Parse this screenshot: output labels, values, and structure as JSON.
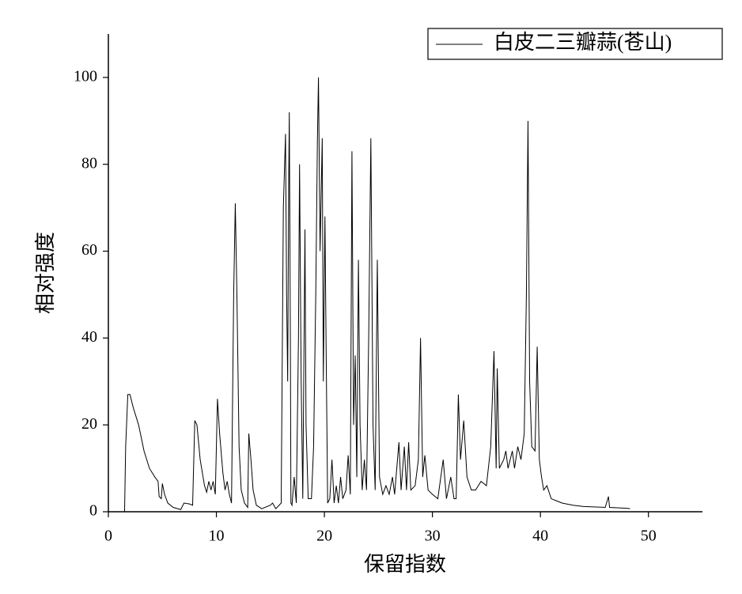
{
  "chart_data": {
    "type": "line",
    "xlabel": "保留指数",
    "ylabel": "相对强度",
    "xlim": [
      0,
      55
    ],
    "ylim": [
      0,
      110
    ],
    "xticks": [
      0,
      10,
      20,
      30,
      40,
      50
    ],
    "yticks": [
      0,
      20,
      40,
      60,
      80,
      100
    ],
    "legend": "upper right",
    "series": [
      {
        "name": "白皮二三瓣蒜(苍山)",
        "color": "#000000",
        "x": [
          1.5,
          1.6,
          1.8,
          2.0,
          2.3,
          2.8,
          3.3,
          3.8,
          4.3,
          4.6,
          4.7,
          4.9,
          5.0,
          5.2,
          5.5,
          6.0,
          6.7,
          7.0,
          7.5,
          7.8,
          8.0,
          8.2,
          8.5,
          8.9,
          9.1,
          9.3,
          9.5,
          9.7,
          9.9,
          10.1,
          10.3,
          10.6,
          10.8,
          11.0,
          11.2,
          11.4,
          11.6,
          11.75,
          11.9,
          12.1,
          12.3,
          12.6,
          12.9,
          13.0,
          13.2,
          13.4,
          13.7,
          14.2,
          15.0,
          15.2,
          15.5,
          16.0,
          16.2,
          16.4,
          16.5,
          16.6,
          16.7,
          16.75,
          16.85,
          16.9,
          17.0,
          17.2,
          17.4,
          17.6,
          17.7,
          17.85,
          18.0,
          18.2,
          18.3,
          18.5,
          18.8,
          19.0,
          19.2,
          19.35,
          19.45,
          19.6,
          19.8,
          19.9,
          20.05,
          20.15,
          20.3,
          20.5,
          20.7,
          20.9,
          21.1,
          21.3,
          21.5,
          21.7,
          22.0,
          22.2,
          22.4,
          22.55,
          22.7,
          22.85,
          23.0,
          23.15,
          23.3,
          23.5,
          23.7,
          23.9,
          24.1,
          24.3,
          24.5,
          24.7,
          24.9,
          25.1,
          25.4,
          25.7,
          26.0,
          26.3,
          26.5,
          26.9,
          27.1,
          27.4,
          27.6,
          27.8,
          28.0,
          28.4,
          28.7,
          28.9,
          29.1,
          29.3,
          29.6,
          30.0,
          30.5,
          31.0,
          31.3,
          31.7,
          32.0,
          32.2,
          32.4,
          32.6,
          32.9,
          33.2,
          33.6,
          34.0,
          34.5,
          35.0,
          35.4,
          35.7,
          35.9,
          36.0,
          36.2,
          36.6,
          36.8,
          37.0,
          37.4,
          37.6,
          37.9,
          38.2,
          38.5,
          38.7,
          38.85,
          39.0,
          39.2,
          39.5,
          39.7,
          39.9,
          40.1,
          40.3,
          40.6,
          41.0,
          41.5,
          42.0,
          43.0,
          44.0,
          46.0,
          46.3,
          46.4,
          48.0,
          48.3
        ],
        "values": [
          0,
          15,
          27,
          27,
          24,
          20,
          14,
          10,
          8,
          7,
          3.5,
          3,
          6.5,
          4,
          2,
          1,
          0.5,
          2,
          1.8,
          1.5,
          21,
          20,
          12,
          6,
          4.5,
          7,
          5,
          7,
          4,
          26,
          18,
          9,
          5,
          7,
          4,
          2,
          50,
          71,
          50,
          15,
          5,
          2,
          1,
          18,
          12,
          5,
          1.5,
          0.7,
          1.5,
          2,
          0.7,
          2,
          70,
          87,
          50,
          30,
          77,
          92,
          40,
          2,
          1.5,
          8,
          2,
          40,
          80,
          30,
          3,
          65,
          20,
          3,
          3,
          15,
          50,
          85,
          100,
          60,
          86,
          30,
          68,
          40,
          2,
          3,
          12,
          2,
          6,
          2,
          8,
          3,
          5,
          13,
          4,
          83,
          20,
          36,
          8,
          58,
          20,
          5,
          12,
          5,
          40,
          86,
          20,
          5,
          58,
          8,
          4,
          6,
          4,
          8,
          4,
          16,
          5,
          15,
          5,
          16,
          5,
          6,
          12,
          40,
          8,
          13,
          5,
          4,
          3,
          12,
          3,
          8,
          3,
          3,
          27,
          12,
          21,
          8,
          5,
          5,
          7,
          6,
          15,
          37,
          10,
          33,
          10,
          12,
          14,
          10,
          14,
          10,
          15,
          12,
          18,
          50,
          90,
          30,
          15,
          14,
          38,
          12,
          8,
          5,
          6,
          3,
          2.5,
          2,
          1.5,
          1.2,
          1.0,
          3.5,
          1,
          0.8,
          0.7
        ]
      }
    ]
  }
}
